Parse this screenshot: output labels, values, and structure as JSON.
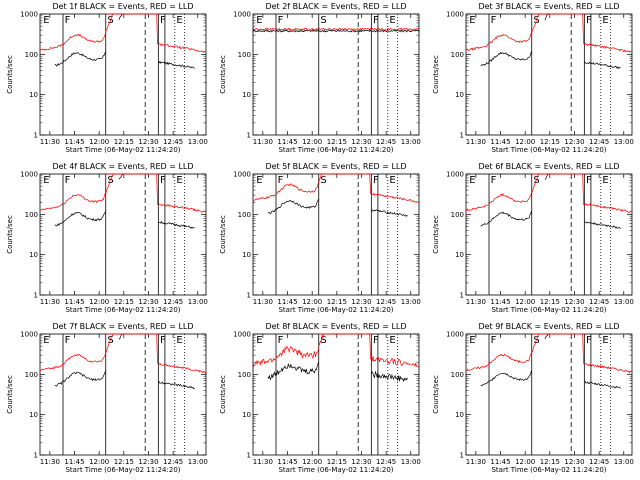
{
  "chart_data": [
    {
      "type": "line",
      "title": "Det 1f BLACK = Events, RED = LLD",
      "xlabel": "Start Time (06-May-02 11:24:20)",
      "ylabel": "Counts/sec",
      "yscale": "log",
      "ylim": [
        1,
        1000
      ],
      "xlim": [
        "11:24",
        "13:05"
      ],
      "x_tick_labels": [
        "11:30",
        "11:45",
        "12:00",
        "12:15",
        "12:30",
        "12:45",
        "13:00"
      ],
      "y_tick_labels": [
        "1",
        "10",
        "100",
        "1000"
      ],
      "segment_labels": [
        "E",
        "F",
        "S",
        "F",
        "E"
      ],
      "series": [
        {
          "color": "#000000",
          "profile": "quiet",
          "level": 50
        },
        {
          "color": "#ff0000",
          "profile": "quiet",
          "level": 140
        }
      ]
    },
    {
      "type": "line",
      "title": "Det 2f BLACK = Events, RED = LLD",
      "xlabel": "Start Time (06-May-02 11:24:20)",
      "ylabel": "Counts/sec",
      "yscale": "log",
      "ylim": [
        1,
        1000
      ],
      "xlim": [
        "11:24",
        "13:05"
      ],
      "x_tick_labels": [
        "11:30",
        "11:45",
        "12:00",
        "12:15",
        "12:30",
        "12:45",
        "13:00"
      ],
      "y_tick_labels": [
        "1",
        "10",
        "100",
        "1000"
      ],
      "segment_labels": [
        "E",
        "F",
        "S",
        "F",
        "E"
      ],
      "series": [
        {
          "color": "#000000",
          "profile": "flat",
          "level": 380
        },
        {
          "color": "#ff0000",
          "profile": "flat",
          "level": 420
        }
      ]
    },
    {
      "type": "line",
      "title": "Det 3f BLACK = Events, RED = LLD",
      "xlabel": "Start Time (06-May-02 11:24:20)",
      "ylabel": "Counts/sec",
      "yscale": "log",
      "ylim": [
        1,
        1000
      ],
      "xlim": [
        "11:24",
        "13:05"
      ],
      "x_tick_labels": [
        "11:30",
        "11:45",
        "12:00",
        "12:15",
        "12:30",
        "12:45",
        "13:00"
      ],
      "y_tick_labels": [
        "1",
        "10",
        "100",
        "1000"
      ],
      "segment_labels": [
        "E",
        "F",
        "S",
        "F",
        "E"
      ],
      "series": [
        {
          "color": "#000000",
          "profile": "quiet",
          "level": 50
        },
        {
          "color": "#ff0000",
          "profile": "quiet",
          "level": 140
        }
      ]
    },
    {
      "type": "line",
      "title": "Det 4f BLACK = Events, RED = LLD",
      "xlabel": "Start Time (06-May-02 11:24:20)",
      "ylabel": "Counts/sec",
      "yscale": "log",
      "ylim": [
        1,
        1000
      ],
      "xlim": [
        "11:24",
        "13:05"
      ],
      "x_tick_labels": [
        "11:30",
        "11:45",
        "12:00",
        "12:15",
        "12:30",
        "12:45",
        "13:00"
      ],
      "y_tick_labels": [
        "1",
        "10",
        "100",
        "1000"
      ],
      "segment_labels": [
        "E",
        "F",
        "S",
        "F",
        "E"
      ],
      "series": [
        {
          "color": "#000000",
          "profile": "quiet",
          "level": 50
        },
        {
          "color": "#ff0000",
          "profile": "quiet",
          "level": 140
        }
      ]
    },
    {
      "type": "line",
      "title": "Det 5f BLACK = Events, RED = LLD",
      "xlabel": "Start Time (06-May-02 11:24:20)",
      "ylabel": "Counts/sec",
      "yscale": "log",
      "ylim": [
        1,
        1000
      ],
      "xlim": [
        "11:24",
        "13:05"
      ],
      "x_tick_labels": [
        "11:30",
        "11:45",
        "12:00",
        "12:15",
        "12:30",
        "12:45",
        "13:00"
      ],
      "y_tick_labels": [
        "1",
        "10",
        "100",
        "1000"
      ],
      "segment_labels": [
        "E",
        "F",
        "S",
        "F",
        "E"
      ],
      "series": [
        {
          "color": "#000000",
          "profile": "mid",
          "level": 100
        },
        {
          "color": "#ff0000",
          "profile": "mid",
          "level": 250
        }
      ]
    },
    {
      "type": "line",
      "title": "Det 6f BLACK = Events, RED = LLD",
      "xlabel": "Start Time (06-May-02 11:24:20)",
      "ylabel": "Counts/sec",
      "yscale": "log",
      "ylim": [
        1,
        1000
      ],
      "xlim": [
        "11:24",
        "13:05"
      ],
      "x_tick_labels": [
        "11:30",
        "11:45",
        "12:00",
        "12:15",
        "12:30",
        "12:45",
        "13:00"
      ],
      "y_tick_labels": [
        "1",
        "10",
        "100",
        "1000"
      ],
      "segment_labels": [
        "E",
        "F",
        "S",
        "F",
        "E"
      ],
      "series": [
        {
          "color": "#000000",
          "profile": "quiet",
          "level": 50
        },
        {
          "color": "#ff0000",
          "profile": "quiet",
          "level": 140
        }
      ]
    },
    {
      "type": "line",
      "title": "Det 7f BLACK = Events, RED = LLD",
      "xlabel": "Start Time (06-May-02 11:24:20)",
      "ylabel": "Counts/sec",
      "yscale": "log",
      "ylim": [
        1,
        1000
      ],
      "xlim": [
        "11:24",
        "13:05"
      ],
      "x_tick_labels": [
        "11:30",
        "11:45",
        "12:00",
        "12:15",
        "12:30",
        "12:45",
        "13:00"
      ],
      "y_tick_labels": [
        "1",
        "10",
        "100",
        "1000"
      ],
      "segment_labels": [
        "E",
        "F",
        "S",
        "F",
        "E"
      ],
      "series": [
        {
          "color": "#000000",
          "profile": "quiet",
          "level": 50
        },
        {
          "color": "#ff0000",
          "profile": "quiet",
          "level": 140
        }
      ]
    },
    {
      "type": "line",
      "title": "Det 8f BLACK = Events, RED = LLD",
      "xlabel": "Start Time (06-May-02 11:24:20)",
      "ylabel": "Counts/sec",
      "yscale": "log",
      "ylim": [
        1,
        1000
      ],
      "xlim": [
        "11:24",
        "13:05"
      ],
      "x_tick_labels": [
        "11:30",
        "11:45",
        "12:00",
        "12:15",
        "12:30",
        "12:45",
        "13:00"
      ],
      "y_tick_labels": [
        "1",
        "10",
        "100",
        "1000"
      ],
      "segment_labels": [
        "E",
        "F",
        "S",
        "F",
        "E"
      ],
      "series": [
        {
          "color": "#000000",
          "profile": "noisy",
          "level": 80
        },
        {
          "color": "#ff0000",
          "profile": "noisy",
          "level": 200
        }
      ]
    },
    {
      "type": "line",
      "title": "Det 9f BLACK = Events, RED = LLD",
      "xlabel": "Start Time (06-May-02 11:24:20)",
      "ylabel": "Counts/sec",
      "yscale": "log",
      "ylim": [
        1,
        1000
      ],
      "xlim": [
        "11:24",
        "13:05"
      ],
      "x_tick_labels": [
        "11:30",
        "11:45",
        "12:00",
        "12:15",
        "12:30",
        "12:45",
        "13:00"
      ],
      "y_tick_labels": [
        "1",
        "10",
        "100",
        "1000"
      ],
      "segment_labels": [
        "E",
        "F",
        "S",
        "F",
        "E"
      ],
      "series": [
        {
          "color": "#000000",
          "profile": "quiet",
          "level": 50
        },
        {
          "color": "#ff0000",
          "profile": "quiet",
          "level": 140
        }
      ]
    }
  ]
}
